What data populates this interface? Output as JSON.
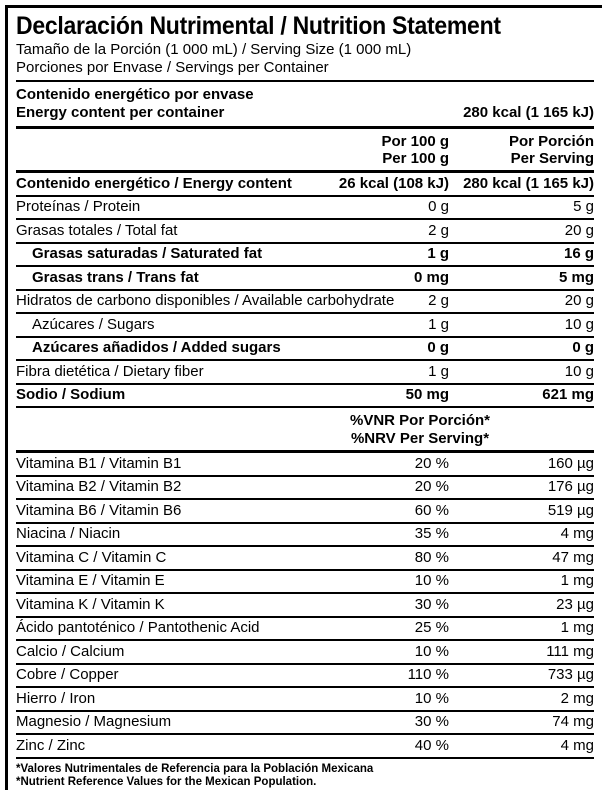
{
  "title": "Declaración Nutrimental / Nutrition Statement",
  "serving_size_line": "Tamaño de la Porción (1 000 mL) / Serving Size (1 000 mL)",
  "servings_per_container_line": "Porciones por Envase / Servings per Container",
  "energy_container": {
    "line1": "Contenido energético por envase",
    "line2": "Energy content per container",
    "value": "280 kcal (1 165 kJ)"
  },
  "col_header": {
    "per100": [
      "Por 100 g",
      "Per 100 g"
    ],
    "per_serving": [
      "Por Porción",
      "Per Serving"
    ]
  },
  "nutrients": [
    {
      "label": "Contenido energético / Energy content",
      "per100": "26 kcal (108 kJ)",
      "serving": "280 kcal (1 165 kJ)",
      "bold": true,
      "indent": false
    },
    {
      "label": "Proteínas / Protein",
      "per100": "0 g",
      "serving": "5 g",
      "bold": false,
      "indent": false
    },
    {
      "label": "Grasas totales / Total fat",
      "per100": "2 g",
      "serving": "20 g",
      "bold": false,
      "indent": false
    },
    {
      "label": "Grasas saturadas / Saturated fat",
      "per100": "1 g",
      "serving": "16 g",
      "bold": true,
      "indent": true
    },
    {
      "label": "Grasas trans / Trans fat",
      "per100": "0 mg",
      "serving": "5 mg",
      "bold": true,
      "indent": true
    },
    {
      "label": "Hidratos de carbono disponibles / Available carbohydrate",
      "per100": "2 g",
      "serving": "20 g",
      "bold": false,
      "indent": false
    },
    {
      "label": "Azúcares / Sugars",
      "per100": "1 g",
      "serving": "10 g",
      "bold": false,
      "indent": true
    },
    {
      "label": "Azúcares añadidos / Added sugars",
      "per100": "0 g",
      "serving": "0 g",
      "bold": true,
      "indent": true
    },
    {
      "label": "Fibra dietética / Dietary fiber",
      "per100": "1 g",
      "serving": "10 g",
      "bold": false,
      "indent": false
    },
    {
      "label": "Sodio / Sodium",
      "per100": "50 mg",
      "serving": "621 mg",
      "bold": true,
      "indent": false
    }
  ],
  "nrv_header": [
    "%VNR Por Porción*",
    "%NRV Per Serving*"
  ],
  "vitamins": [
    {
      "label": "Vitamina B1 / Vitamin B1",
      "nrv": "20 %",
      "amount": "160 µg"
    },
    {
      "label": "Vitamina B2 / Vitamin B2",
      "nrv": "20 %",
      "amount": "176 µg"
    },
    {
      "label": "Vitamina B6 / Vitamin B6",
      "nrv": "60 %",
      "amount": "519 µg"
    },
    {
      "label": "Niacina / Niacin",
      "nrv": "35 %",
      "amount": "4 mg"
    },
    {
      "label": "Vitamina C / Vitamin C",
      "nrv": "80 %",
      "amount": "47 mg"
    },
    {
      "label": "Vitamina E / Vitamin E",
      "nrv": "10 %",
      "amount": "1 mg"
    },
    {
      "label": "Vitamina K / Vitamin K",
      "nrv": "30 %",
      "amount": "23 µg"
    },
    {
      "label": "Ácido pantoténico / Pantothenic Acid",
      "nrv": "25 %",
      "amount": "1 mg"
    },
    {
      "label": "Calcio / Calcium",
      "nrv": "10 %",
      "amount": "111 mg"
    },
    {
      "label": "Cobre / Copper",
      "nrv": "110 %",
      "amount": "733 µg"
    },
    {
      "label": "Hierro / Iron",
      "nrv": "10 %",
      "amount": "2 mg"
    },
    {
      "label": "Magnesio / Magnesium",
      "nrv": "30 %",
      "amount": "74 mg"
    },
    {
      "label": "Zinc / Zinc",
      "nrv": "40 %",
      "amount": "4 mg"
    }
  ],
  "footnotes": [
    "*Valores Nutrimentales de Referencia para la Población Mexicana",
    "*Nutrient Reference Values for the Mexican Population."
  ],
  "colors": {
    "border": "#000000",
    "text": "#000000",
    "background": "#ffffff"
  }
}
